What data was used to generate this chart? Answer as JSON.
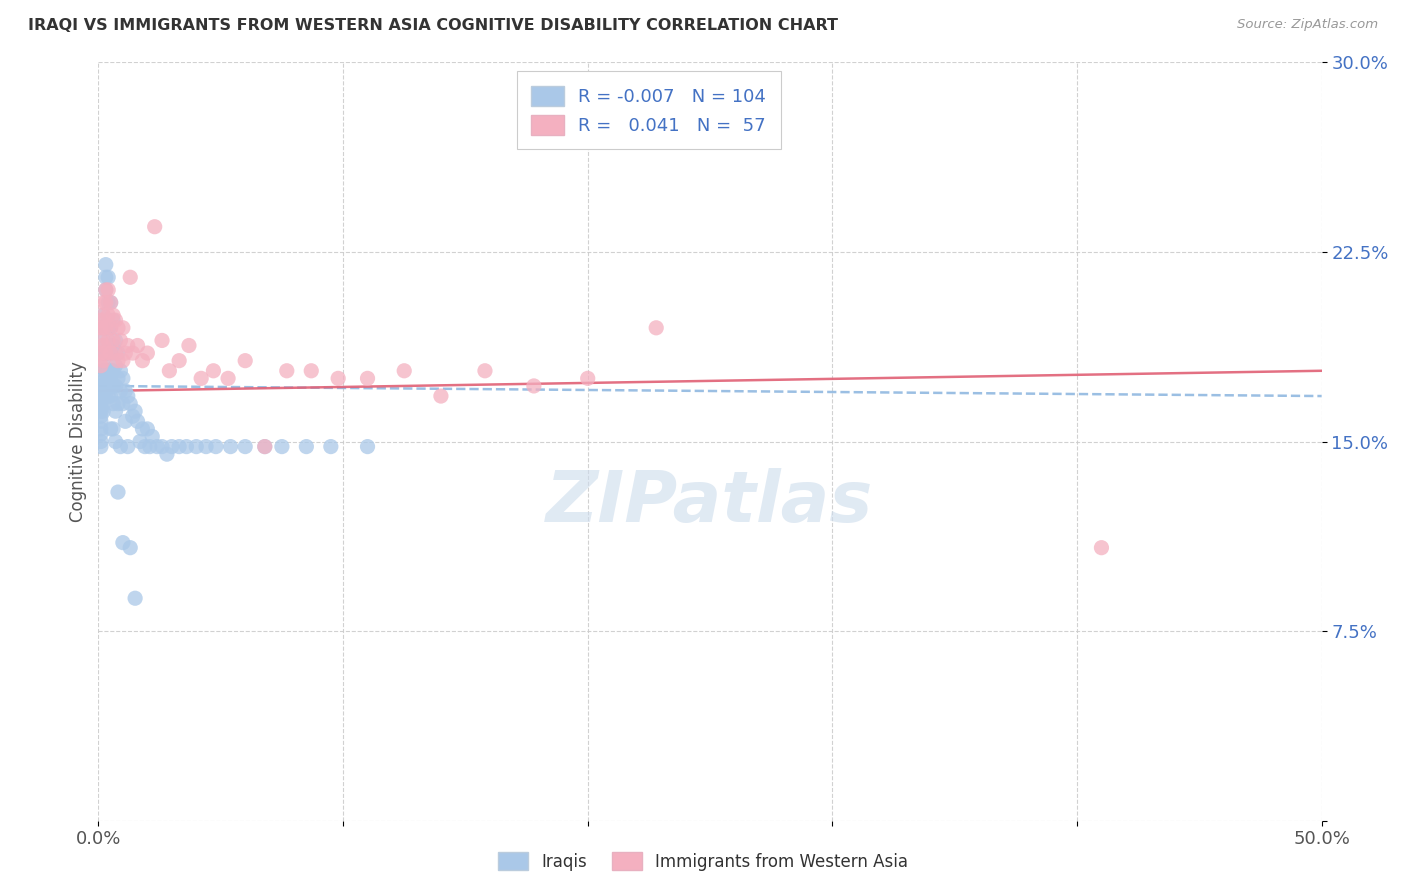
{
  "title": "IRAQI VS IMMIGRANTS FROM WESTERN ASIA COGNITIVE DISABILITY CORRELATION CHART",
  "source": "Source: ZipAtlas.com",
  "ylabel": "Cognitive Disability",
  "yticks": [
    0.0,
    0.075,
    0.15,
    0.225,
    0.3
  ],
  "ytick_labels": [
    "",
    "7.5%",
    "15.0%",
    "22.5%",
    "30.0%"
  ],
  "xlim": [
    0.0,
    0.5
  ],
  "ylim": [
    0.0,
    0.3
  ],
  "watermark": "ZIPatlas",
  "legend_R1": "-0.007",
  "legend_N1": "104",
  "legend_R2": "0.041",
  "legend_N2": "57",
  "iraqis_color": "#aac8e8",
  "immigrants_color": "#f4b0c0",
  "iraqis_line_color": "#90b8e0",
  "immigrants_line_color": "#e06075",
  "iraqis_x": [
    0.001,
    0.001,
    0.001,
    0.001,
    0.001,
    0.001,
    0.001,
    0.001,
    0.001,
    0.001,
    0.001,
    0.001,
    0.001,
    0.001,
    0.002,
    0.002,
    0.002,
    0.002,
    0.002,
    0.002,
    0.002,
    0.002,
    0.002,
    0.002,
    0.002,
    0.002,
    0.003,
    0.003,
    0.003,
    0.003,
    0.003,
    0.003,
    0.003,
    0.003,
    0.003,
    0.004,
    0.004,
    0.004,
    0.004,
    0.004,
    0.004,
    0.004,
    0.004,
    0.005,
    0.005,
    0.005,
    0.005,
    0.005,
    0.005,
    0.005,
    0.005,
    0.006,
    0.006,
    0.006,
    0.006,
    0.006,
    0.006,
    0.007,
    0.007,
    0.007,
    0.007,
    0.007,
    0.008,
    0.008,
    0.008,
    0.008,
    0.009,
    0.009,
    0.009,
    0.01,
    0.01,
    0.01,
    0.011,
    0.011,
    0.012,
    0.012,
    0.013,
    0.013,
    0.014,
    0.015,
    0.015,
    0.016,
    0.017,
    0.018,
    0.019,
    0.02,
    0.021,
    0.022,
    0.024,
    0.026,
    0.028,
    0.03,
    0.033,
    0.036,
    0.04,
    0.044,
    0.048,
    0.054,
    0.06,
    0.068,
    0.075,
    0.085,
    0.095,
    0.11
  ],
  "iraqis_y": [
    0.172,
    0.172,
    0.17,
    0.168,
    0.166,
    0.165,
    0.163,
    0.162,
    0.16,
    0.158,
    0.155,
    0.153,
    0.15,
    0.148,
    0.2,
    0.195,
    0.19,
    0.185,
    0.18,
    0.178,
    0.175,
    0.172,
    0.17,
    0.168,
    0.165,
    0.162,
    0.22,
    0.215,
    0.21,
    0.195,
    0.185,
    0.178,
    0.175,
    0.172,
    0.168,
    0.215,
    0.205,
    0.195,
    0.185,
    0.178,
    0.175,
    0.172,
    0.168,
    0.205,
    0.195,
    0.185,
    0.178,
    0.175,
    0.172,
    0.168,
    0.155,
    0.198,
    0.188,
    0.178,
    0.172,
    0.165,
    0.155,
    0.19,
    0.18,
    0.172,
    0.162,
    0.15,
    0.185,
    0.175,
    0.165,
    0.13,
    0.178,
    0.17,
    0.148,
    0.175,
    0.165,
    0.11,
    0.17,
    0.158,
    0.168,
    0.148,
    0.165,
    0.108,
    0.16,
    0.162,
    0.088,
    0.158,
    0.15,
    0.155,
    0.148,
    0.155,
    0.148,
    0.152,
    0.148,
    0.148,
    0.145,
    0.148,
    0.148,
    0.148,
    0.148,
    0.148,
    0.148,
    0.148,
    0.148,
    0.148,
    0.148,
    0.148,
    0.148,
    0.148
  ],
  "immigrants_x": [
    0.001,
    0.001,
    0.001,
    0.001,
    0.001,
    0.002,
    0.002,
    0.002,
    0.002,
    0.002,
    0.003,
    0.003,
    0.003,
    0.003,
    0.004,
    0.004,
    0.004,
    0.005,
    0.005,
    0.005,
    0.006,
    0.006,
    0.007,
    0.007,
    0.008,
    0.008,
    0.009,
    0.01,
    0.01,
    0.011,
    0.012,
    0.013,
    0.014,
    0.016,
    0.018,
    0.02,
    0.023,
    0.026,
    0.029,
    0.033,
    0.037,
    0.042,
    0.047,
    0.053,
    0.06,
    0.068,
    0.077,
    0.087,
    0.098,
    0.11,
    0.125,
    0.14,
    0.158,
    0.178,
    0.2,
    0.228,
    0.41
  ],
  "immigrants_y": [
    0.198,
    0.195,
    0.19,
    0.185,
    0.18,
    0.205,
    0.2,
    0.195,
    0.188,
    0.182,
    0.21,
    0.205,
    0.195,
    0.185,
    0.21,
    0.2,
    0.19,
    0.205,
    0.195,
    0.185,
    0.2,
    0.19,
    0.198,
    0.185,
    0.195,
    0.182,
    0.19,
    0.195,
    0.182,
    0.185,
    0.188,
    0.215,
    0.185,
    0.188,
    0.182,
    0.185,
    0.235,
    0.19,
    0.178,
    0.182,
    0.188,
    0.175,
    0.178,
    0.175,
    0.182,
    0.148,
    0.178,
    0.178,
    0.175,
    0.175,
    0.178,
    0.168,
    0.178,
    0.172,
    0.175,
    0.195,
    0.108
  ]
}
